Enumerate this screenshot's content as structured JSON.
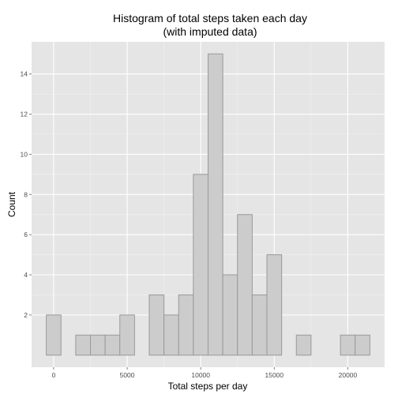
{
  "chart_data": {
    "type": "bar",
    "title": "Histogram of total steps taken each day",
    "subtitle": "(with imputed data)",
    "xlabel": "Total steps per day",
    "ylabel": "Count",
    "xlim": [
      -1500,
      22500
    ],
    "ylim": [
      -0.6,
      15.6
    ],
    "bin_width": 1000,
    "x_ticks": [
      0,
      5000,
      10000,
      15000,
      20000
    ],
    "x_tick_labels": [
      "0",
      "5000",
      "10000",
      "15000",
      "20000"
    ],
    "y_ticks": [
      2,
      4,
      6,
      8,
      10,
      12,
      14
    ],
    "y_tick_labels": [
      "2",
      "4",
      "6",
      "8",
      "10",
      "12",
      "14"
    ],
    "bins": [
      {
        "center": 0,
        "count": 2
      },
      {
        "center": 1000,
        "count": 0
      },
      {
        "center": 2000,
        "count": 1
      },
      {
        "center": 3000,
        "count": 1
      },
      {
        "center": 4000,
        "count": 1
      },
      {
        "center": 5000,
        "count": 2
      },
      {
        "center": 6000,
        "count": 0
      },
      {
        "center": 7000,
        "count": 3
      },
      {
        "center": 8000,
        "count": 2
      },
      {
        "center": 9000,
        "count": 3
      },
      {
        "center": 10000,
        "count": 9
      },
      {
        "center": 11000,
        "count": 15
      },
      {
        "center": 12000,
        "count": 4
      },
      {
        "center": 13000,
        "count": 7
      },
      {
        "center": 14000,
        "count": 3
      },
      {
        "center": 15000,
        "count": 5
      },
      {
        "center": 16000,
        "count": 0
      },
      {
        "center": 17000,
        "count": 1
      },
      {
        "center": 18000,
        "count": 0
      },
      {
        "center": 19000,
        "count": 0
      },
      {
        "center": 20000,
        "count": 1
      },
      {
        "center": 21000,
        "count": 1
      }
    ],
    "panel_background": "#e5e5e5",
    "bar_fill": "#cccccc",
    "bar_outline": "#999999",
    "grid": true,
    "legend": "none"
  }
}
